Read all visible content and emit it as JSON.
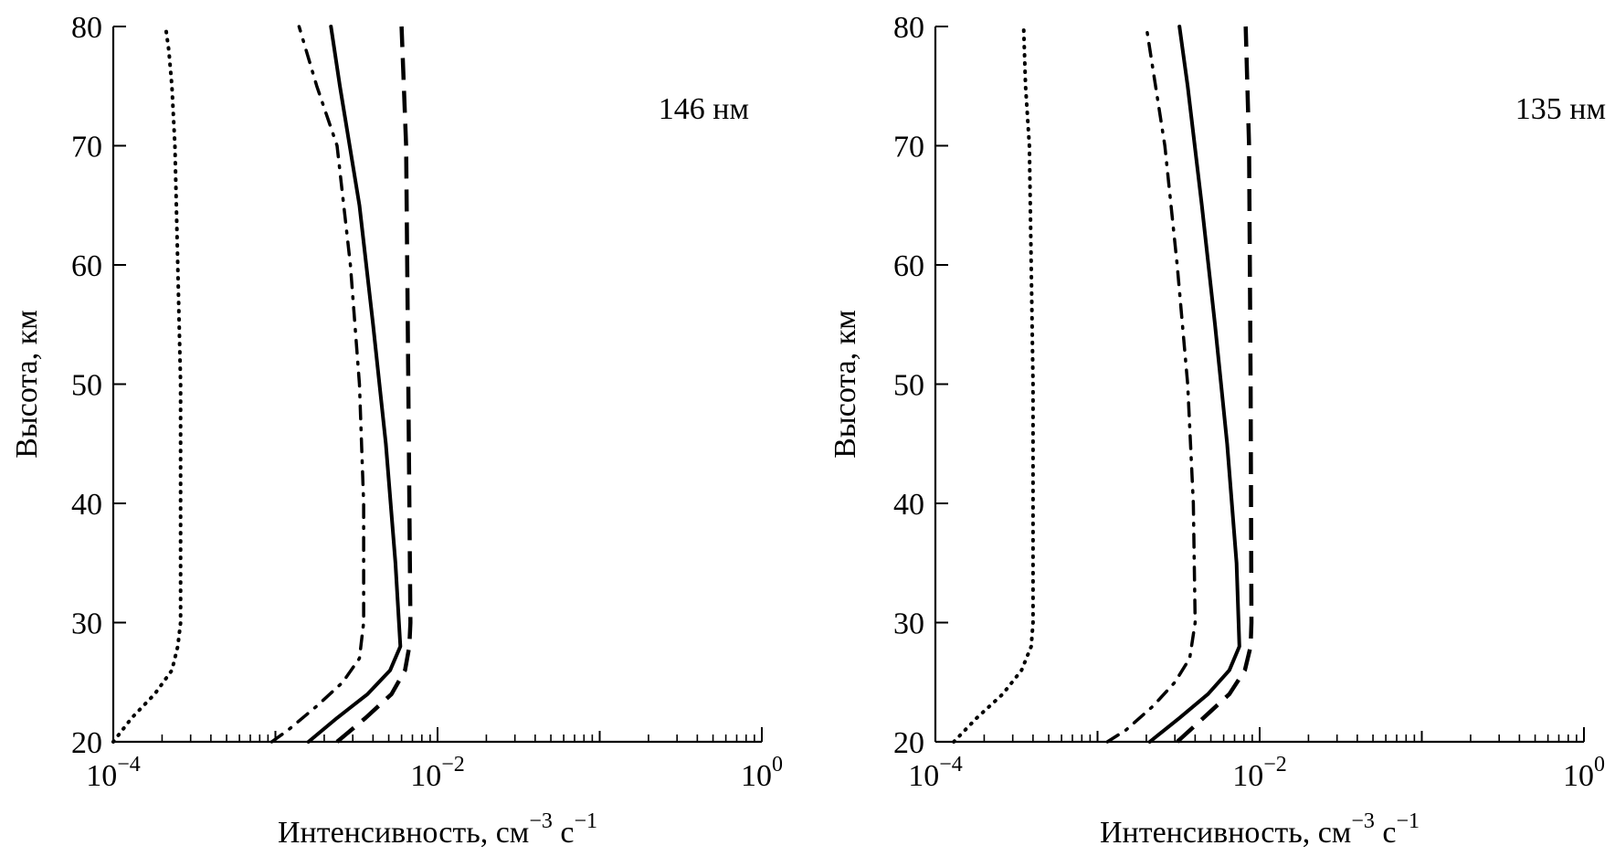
{
  "chart_data": [
    {
      "type": "line",
      "annotation": "146 нм",
      "xlabel": "Интенсивность, см⁻³ с⁻¹",
      "xlabel_parts": {
        "main": "Интенсивность, см",
        "exp1": "−3",
        "mid": " с",
        "exp2": "−1"
      },
      "ylabel": "Высота, км",
      "xscale": "log",
      "xlim": [
        0.0001,
        1
      ],
      "ylim": [
        20,
        80
      ],
      "xticks": [
        {
          "base": "10",
          "exp": "−4"
        },
        {
          "base": "10",
          "exp": "−2"
        },
        {
          "base": "10",
          "exp": "0"
        }
      ],
      "yticks": [
        "20",
        "30",
        "40",
        "50",
        "60",
        "70",
        "80"
      ],
      "series": [
        {
          "style": "dotted",
          "x": [
            0.0001,
            0.00013,
            0.00018,
            0.00023,
            0.00025,
            0.00026,
            0.00026,
            0.00026,
            0.00026,
            0.00025,
            0.00024,
            0.00023,
            0.00022,
            0.00021
          ],
          "y": [
            20,
            22,
            24,
            26,
            28,
            30,
            35,
            40,
            50,
            60,
            70,
            75,
            78,
            80
          ]
        },
        {
          "style": "dashdot",
          "x": [
            0.00095,
            0.0012,
            0.0018,
            0.0026,
            0.0033,
            0.0035,
            0.0035,
            0.0033,
            0.0029,
            0.0024,
            0.0018,
            0.0014
          ],
          "y": [
            20,
            21,
            23,
            25,
            27,
            30,
            40,
            50,
            60,
            70,
            75,
            80
          ]
        },
        {
          "style": "solid",
          "x": [
            0.0016,
            0.0024,
            0.0037,
            0.0051,
            0.0059,
            0.0055,
            0.0048,
            0.004,
            0.0033,
            0.0025,
            0.0022
          ],
          "y": [
            20,
            22,
            24,
            26,
            28,
            35,
            45,
            55,
            65,
            75,
            80
          ]
        },
        {
          "style": "dashed",
          "x": [
            0.0024,
            0.0036,
            0.0052,
            0.0063,
            0.0067,
            0.0068,
            0.0066,
            0.0064,
            0.006
          ],
          "y": [
            20,
            22,
            24,
            26,
            28,
            30,
            50,
            70,
            80
          ]
        }
      ]
    },
    {
      "type": "line",
      "annotation": "135 нм",
      "xlabel": "Интенсивность, см⁻³ с⁻¹",
      "xlabel_parts": {
        "main": "Интенсивность, см",
        "exp1": "−3",
        "mid": " с",
        "exp2": "−1"
      },
      "ylabel": "Высота, км",
      "xscale": "log",
      "xlim": [
        0.0001,
        1
      ],
      "ylim": [
        20,
        80
      ],
      "xticks": [
        {
          "base": "10",
          "exp": "−4"
        },
        {
          "base": "10",
          "exp": "−2"
        },
        {
          "base": "10",
          "exp": "0"
        }
      ],
      "yticks": [
        "20",
        "30",
        "40",
        "50",
        "60",
        "70",
        "80"
      ],
      "series": [
        {
          "style": "dotted",
          "x": [
            0.00013,
            0.00018,
            0.00026,
            0.00034,
            0.00039,
            0.0004,
            0.0004,
            0.0004,
            0.0004,
            0.00039,
            0.00038,
            0.00036,
            0.00035
          ],
          "y": [
            20,
            22,
            24,
            26,
            28,
            30,
            35,
            40,
            50,
            60,
            70,
            75,
            80
          ]
        },
        {
          "style": "dashdot",
          "x": [
            0.00115,
            0.0015,
            0.0022,
            0.003,
            0.0037,
            0.004,
            0.0039,
            0.0036,
            0.0031,
            0.0026,
            0.002
          ],
          "y": [
            20,
            21,
            23,
            25,
            27,
            30,
            40,
            50,
            60,
            70,
            80
          ]
        },
        {
          "style": "solid",
          "x": [
            0.0021,
            0.0032,
            0.0048,
            0.0065,
            0.0075,
            0.0072,
            0.0063,
            0.0053,
            0.0044,
            0.0036,
            0.0032
          ],
          "y": [
            20,
            22,
            24,
            26,
            28,
            35,
            45,
            55,
            65,
            75,
            80
          ]
        },
        {
          "style": "dashed",
          "x": [
            0.0031,
            0.0045,
            0.0065,
            0.0081,
            0.0088,
            0.0089,
            0.0088,
            0.0086,
            0.0082
          ],
          "y": [
            20,
            22,
            24,
            26,
            28,
            30,
            50,
            70,
            80
          ]
        }
      ]
    }
  ]
}
